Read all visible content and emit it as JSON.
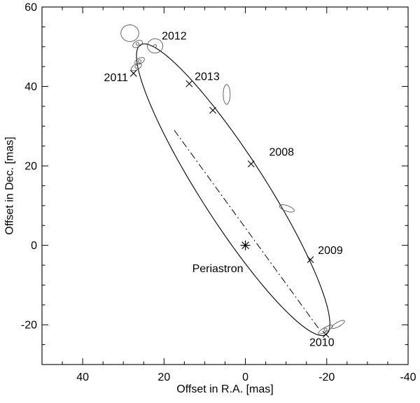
{
  "chart_data": {
    "type": "scatter",
    "title": "",
    "xlabel": "Offset in R.A. [mas]",
    "ylabel": "Offset in Dec. [mas]",
    "xlim": [
      50,
      -40
    ],
    "ylim": [
      -30,
      60
    ],
    "xticks": [
      40,
      20,
      0,
      -20,
      -40
    ],
    "yticks": [
      -20,
      0,
      20,
      40,
      60
    ],
    "minor_tick_step": 5,
    "x_axis_reversed": true,
    "colors": {
      "ink": "#000000",
      "measurement": "#555555"
    },
    "orbit_ellipse": {
      "cx": 3.0,
      "cy": 14.0,
      "a": 43.0,
      "b": 8.0,
      "angle_deg": 58
    },
    "apsides_line": {
      "x1": 17.5,
      "y1": 29.0,
      "x2": -18.2,
      "y2": -21.2,
      "style": "dash-dot"
    },
    "primary_marker": {
      "x": 0,
      "y": 0,
      "symbol": "asterisk"
    },
    "annotations": [
      {
        "text": "Periastron",
        "x": 6.8,
        "y": -5.8
      }
    ],
    "epochs": [
      {
        "label": "2008",
        "x": -1.4,
        "y": 20.5,
        "lx": -8.9,
        "ly": 23.5
      },
      {
        "label": "2009",
        "x": -16.0,
        "y": -3.6,
        "lx": -20.9,
        "ly": -1.2
      },
      {
        "label": "2010",
        "x": -19.8,
        "y": -22.4,
        "lx": -18.8,
        "ly": -24.4
      },
      {
        "label": "2011",
        "x": 27.5,
        "y": 43.3,
        "lx": 31.8,
        "ly": 42.3
      },
      {
        "label": "2012",
        "x": null,
        "y": null,
        "lx": 17.5,
        "ly": 52.8
      },
      {
        "label": "2013",
        "x": 13.8,
        "y": 40.7,
        "lx": 9.4,
        "ly": 42.6
      },
      {
        "label": "",
        "x": 8.0,
        "y": 34.0,
        "lx": null,
        "ly": null
      }
    ],
    "error_ellipses": [
      {
        "cx": 28.4,
        "cy": 53.4,
        "rx": 2.2,
        "ry": 2.1,
        "angle_deg": 0,
        "dot": false
      },
      {
        "cx": 22.2,
        "cy": 50.2,
        "rx": 1.9,
        "ry": 1.8,
        "angle_deg": 0,
        "dot": true
      },
      {
        "cx": 26.5,
        "cy": 50.7,
        "rx": 1.3,
        "ry": 0.75,
        "angle_deg": -30,
        "dot": true
      },
      {
        "cx": 26.0,
        "cy": 46.4,
        "rx": 1.3,
        "ry": 0.7,
        "angle_deg": -30,
        "dot": true
      },
      {
        "cx": 26.8,
        "cy": 44.9,
        "rx": 1.4,
        "ry": 0.7,
        "angle_deg": -30,
        "dot": true
      },
      {
        "cx": 4.6,
        "cy": 38.0,
        "rx": 0.85,
        "ry": 2.5,
        "angle_deg": 0,
        "dot": false
      },
      {
        "cx": -10.2,
        "cy": 9.3,
        "rx": 1.9,
        "ry": 0.7,
        "angle_deg": 20,
        "dot": false
      },
      {
        "cx": -19.7,
        "cy": -21.2,
        "rx": 2.0,
        "ry": 0.55,
        "angle_deg": -30,
        "dot": true
      },
      {
        "cx": -22.8,
        "cy": -19.9,
        "rx": 1.8,
        "ry": 0.55,
        "angle_deg": -30,
        "dot": false
      }
    ]
  }
}
